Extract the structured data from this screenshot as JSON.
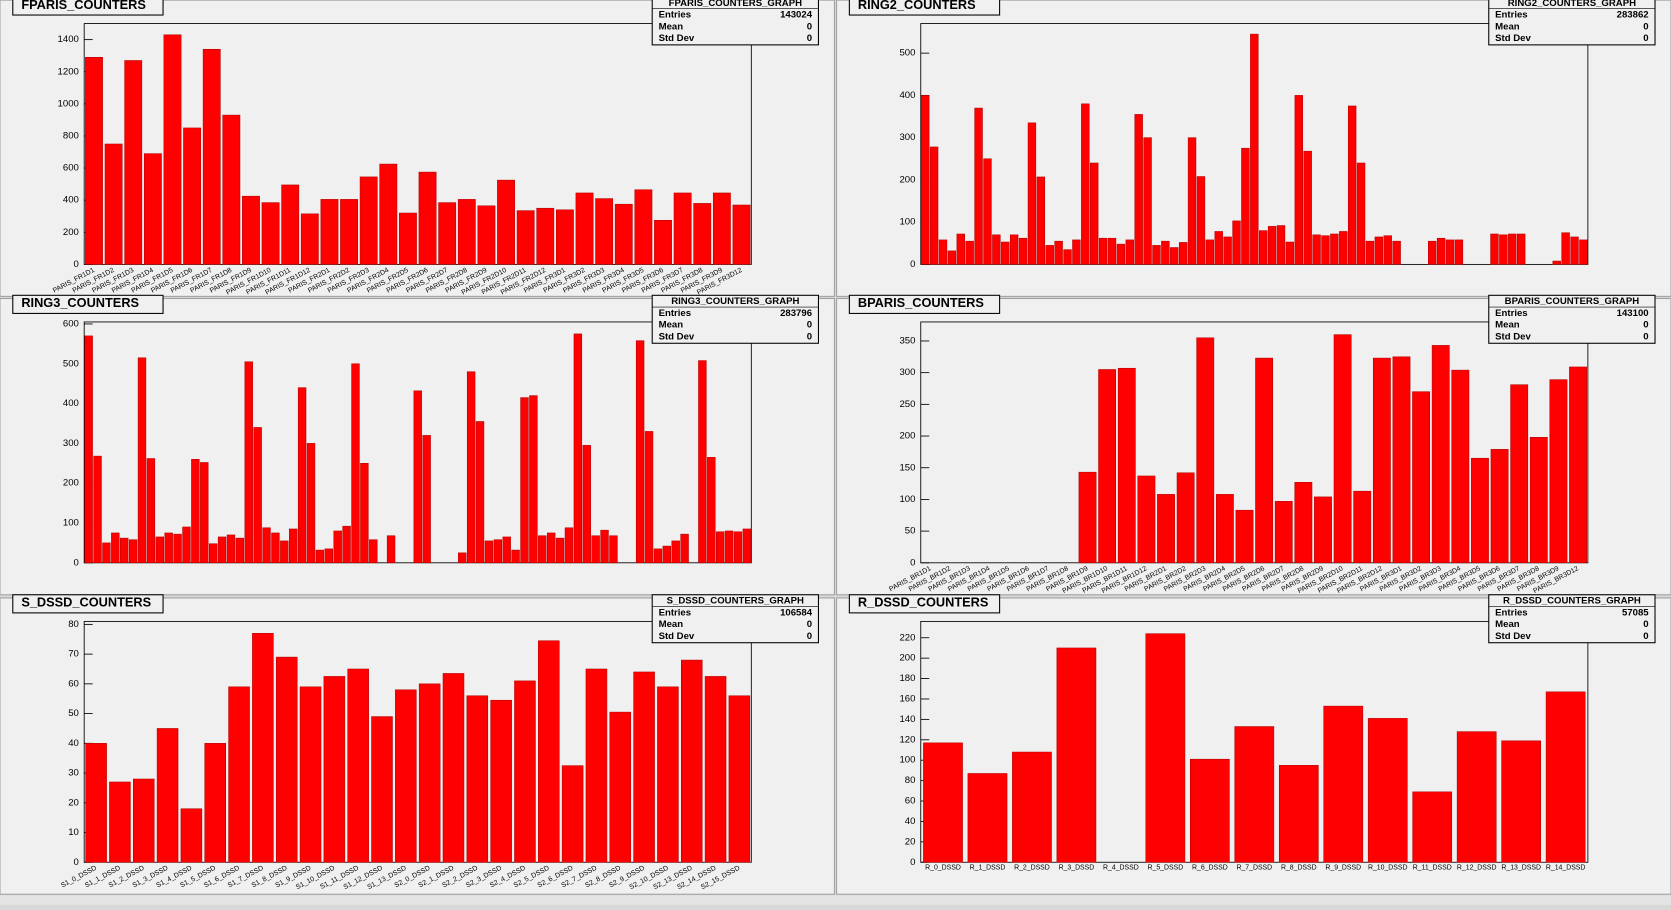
{
  "chart_data": [
    {
      "type": "bar",
      "title": "FPARIS_COUNTERS",
      "color": "#ff0000",
      "stats": {
        "name": "FPARIS_COUNTERS_GRAPH",
        "rows": [
          {
            "label": "Entries",
            "value": 143024
          },
          {
            "label": "Mean",
            "value": 0
          },
          {
            "label": "Std Dev",
            "value": 0
          }
        ]
      },
      "categories": [
        "PARIS_FR1D1",
        "PARIS_FR1D2",
        "PARIS_FR1D3",
        "PARIS_FR1D4",
        "PARIS_FR1D5",
        "PARIS_FR1D6",
        "PARIS_FR1D7",
        "PARIS_FR1D8",
        "PARIS_FR1D9",
        "PARIS_FR1D10",
        "PARIS_FR1D11",
        "PARIS_FR1D12",
        "PARIS_FR2D1",
        "PARIS_FR2D2",
        "PARIS_FR2D3",
        "PARIS_FR2D4",
        "PARIS_FR2D5",
        "PARIS_FR2D6",
        "PARIS_FR2D7",
        "PARIS_FR2D8",
        "PARIS_FR2D9",
        "PARIS_FR2D10",
        "PARIS_FR2D11",
        "PARIS_FR2D12",
        "PARIS_FR3D1",
        "PARIS_FR3D2",
        "PARIS_FR3D3",
        "PARIS_FR3D4",
        "PARIS_FR3D5",
        "PARIS_FR3D6",
        "PARIS_FR3D7",
        "PARIS_FR3D8",
        "PARIS_FR3D9",
        "PARIS_FR3D12"
      ],
      "values": [
        1290,
        750,
        1270,
        690,
        1430,
        850,
        1340,
        930,
        425,
        385,
        495,
        315,
        405,
        405,
        545,
        625,
        320,
        575,
        385,
        405,
        365,
        525,
        335,
        350,
        340,
        445,
        410,
        375,
        465,
        275,
        445,
        380,
        445,
        370
      ],
      "ylim": [
        0,
        1500
      ],
      "yticks": [
        0,
        200,
        400,
        600,
        800,
        1000,
        1200,
        1400
      ]
    },
    {
      "type": "bar",
      "title": "RING2_COUNTERS",
      "color": "#ff0000",
      "stats": {
        "name": "RING2_COUNTERS_GRAPH",
        "rows": [
          {
            "label": "Entries",
            "value": 283862
          },
          {
            "label": "Mean",
            "value": 0
          },
          {
            "label": "Std Dev",
            "value": 0
          }
        ]
      },
      "categories": [
        null,
        null,
        null,
        null,
        null,
        null,
        null,
        null,
        null,
        null,
        null,
        null,
        null,
        null,
        null,
        null,
        null,
        null,
        null,
        null,
        null,
        null,
        null,
        null,
        null,
        null,
        null,
        null,
        null,
        null,
        null,
        null,
        null,
        null,
        null,
        null,
        null,
        null,
        null,
        null,
        null,
        null,
        null,
        null,
        null,
        null,
        null,
        null,
        null,
        null,
        null,
        null,
        null,
        null,
        null,
        null,
        null,
        null,
        null,
        null,
        null,
        null,
        null,
        null,
        null,
        null,
        null,
        null,
        null,
        null,
        null,
        null,
        null,
        null,
        null
      ],
      "values": [
        400,
        278,
        58,
        32,
        72,
        55,
        370,
        250,
        70,
        53,
        70,
        62,
        335,
        207,
        45,
        55,
        35,
        58,
        380,
        240,
        62,
        62,
        48,
        58,
        355,
        300,
        45,
        55,
        40,
        52,
        300,
        208,
        58,
        78,
        65,
        103,
        275,
        545,
        80,
        90,
        92,
        53,
        400,
        268,
        70,
        68,
        72,
        78,
        375,
        240,
        55,
        65,
        68,
        55,
        0,
        0,
        0,
        55,
        62,
        58,
        58,
        0,
        0,
        0,
        72,
        70,
        72,
        72,
        0,
        0,
        0,
        8,
        75,
        65,
        58
      ],
      "ylim": [
        0,
        570
      ],
      "yticks": [
        0,
        100,
        200,
        300,
        400,
        500
      ]
    },
    {
      "type": "bar",
      "title": "RING3_COUNTERS",
      "color": "#ff0000",
      "stats": {
        "name": "RING3_COUNTERS_GRAPH",
        "rows": [
          {
            "label": "Entries",
            "value": 283796
          },
          {
            "label": "Mean",
            "value": 0
          },
          {
            "label": "Std Dev",
            "value": 0
          }
        ]
      },
      "categories": [
        null,
        null,
        null,
        null,
        null,
        null,
        null,
        null,
        null,
        null,
        null,
        null,
        null,
        null,
        null,
        null,
        null,
        null,
        null,
        null,
        null,
        null,
        null,
        null,
        null,
        null,
        null,
        null,
        null,
        null,
        null,
        null,
        null,
        null,
        null,
        null,
        null,
        null,
        null,
        null,
        null,
        null,
        null,
        null,
        null,
        null,
        null,
        null,
        null,
        null,
        null,
        null,
        null,
        null,
        null,
        null,
        null,
        null,
        null,
        null,
        null,
        null,
        null,
        null,
        null,
        null,
        null,
        null,
        null,
        null,
        null,
        null,
        null,
        null,
        null
      ],
      "values": [
        570,
        268,
        50,
        75,
        62,
        58,
        515,
        262,
        65,
        75,
        72,
        90,
        260,
        252,
        48,
        65,
        70,
        62,
        505,
        340,
        88,
        75,
        55,
        85,
        440,
        300,
        32,
        35,
        80,
        92,
        500,
        250,
        58,
        0,
        68,
        0,
        0,
        432,
        320,
        0,
        0,
        0,
        25,
        480,
        355,
        55,
        58,
        65,
        32,
        415,
        420,
        68,
        75,
        62,
        88,
        575,
        295,
        68,
        82,
        68,
        0,
        0,
        558,
        330,
        35,
        42,
        55,
        72,
        0,
        508,
        265,
        78,
        80,
        78,
        85
      ],
      "ylim": [
        0,
        605
      ],
      "yticks": [
        0,
        100,
        200,
        300,
        400,
        500,
        600
      ]
    },
    {
      "type": "bar",
      "title": "BPARIS_COUNTERS",
      "color": "#ff0000",
      "stats": {
        "name": "BPARIS_COUNTERS_GRAPH",
        "rows": [
          {
            "label": "Entries",
            "value": 143100
          },
          {
            "label": "Mean",
            "value": 0
          },
          {
            "label": "Std Dev",
            "value": 0
          }
        ]
      },
      "categories": [
        "PARIS_BR1D1",
        "PARIS_BR1D2",
        "PARIS_BR1D3",
        "PARIS_BR1D4",
        "PARIS_BR1D5",
        "PARIS_BR1D6",
        "PARIS_BR1D7",
        "PARIS_BR1D8",
        "PARIS_BR1D9",
        "PARIS_BR1D10",
        "PARIS_BR1D11",
        "PARIS_BR1D12",
        "PARIS_BR2D1",
        "PARIS_BR2D2",
        "PARIS_BR2D3",
        "PARIS_BR2D4",
        "PARIS_BR2D5",
        "PARIS_BR2D6",
        "PARIS_BR2D7",
        "PARIS_BR2D8",
        "PARIS_BR2D9",
        "PARIS_BR2D10",
        "PARIS_BR2D11",
        "PARIS_BR2D12",
        "PARIS_BR3D1",
        "PARIS_BR3D2",
        "PARIS_BR3D3",
        "PARIS_BR3D4",
        "PARIS_BR3D5",
        "PARIS_BR3D6",
        "PARIS_BR3D7",
        "PARIS_BR3D8",
        "PARIS_BR3D9",
        "PARIS_BR3D12"
      ],
      "values": [
        0,
        0,
        0,
        0,
        0,
        0,
        0,
        0,
        143,
        305,
        307,
        137,
        108,
        142,
        355,
        108,
        83,
        323,
        97,
        127,
        104,
        360,
        113,
        323,
        325,
        270,
        343,
        304,
        165,
        179,
        281,
        198,
        289,
        309
      ],
      "ylim": [
        0,
        380
      ],
      "yticks": [
        0,
        50,
        100,
        150,
        200,
        250,
        300,
        350
      ]
    },
    {
      "type": "bar",
      "title": "S_DSSD_COUNTERS",
      "color": "#ff0000",
      "stats": {
        "name": "S_DSSD_COUNTERS_GRAPH",
        "rows": [
          {
            "label": "Entries",
            "value": 106584
          },
          {
            "label": "Mean",
            "value": 0
          },
          {
            "label": "Std Dev",
            "value": 0
          }
        ]
      },
      "categories": [
        "S1_0_DSSD",
        "S1_1_DSSD",
        "S1_2_DSSD",
        "S1_3_DSSD",
        "S1_4_DSSD",
        "S1_5_DSSD",
        "S1_6_DSSD",
        "S1_7_DSSD",
        "S1_8_DSSD",
        "S1_9_DSSD",
        "S1_10_DSSD",
        "S1_11_DSSD",
        "S1_12_DSSD",
        "S1_13_DSSD",
        "S2_0_DSSD",
        "S2_1_DSSD",
        "S2_2_DSSD",
        "S2_3_DSSD",
        "S2_4_DSSD",
        "S2_5_DSSD",
        "S2_6_DSSD",
        "S2_7_DSSD",
        "S2_8_DSSD",
        "S2_9_DSSD",
        "S2_10_DSSD",
        "S2_13_DSSD",
        "S2_14_DSSD",
        "S2_15_DSSD"
      ],
      "values": [
        40,
        27,
        28,
        45,
        18,
        40,
        59,
        77,
        69,
        59,
        62.5,
        65,
        49,
        58,
        60,
        63.5,
        56,
        54.5,
        61,
        74.5,
        32.5,
        65,
        50.5,
        64,
        59,
        68,
        62.5,
        56
      ],
      "ylim": [
        0,
        81
      ],
      "yticks": [
        0,
        10,
        20,
        30,
        40,
        50,
        60,
        70,
        80
      ]
    },
    {
      "type": "bar",
      "title": "R_DSSD_COUNTERS",
      "color": "#ff0000",
      "stats": {
        "name": "R_DSSD_COUNTERS_GRAPH",
        "rows": [
          {
            "label": "Entries",
            "value": 57085
          },
          {
            "label": "Mean",
            "value": 0
          },
          {
            "label": "Std Dev",
            "value": 0
          }
        ]
      },
      "categories": [
        "R_0_DSSD",
        "R_1_DSSD",
        "R_2_DSSD",
        "R_3_DSSD",
        "R_4_DSSD",
        "R_5_DSSD",
        "R_6_DSSD",
        "R_7_DSSD",
        "R_8_DSSD",
        "R_9_DSSD",
        "R_10_DSSD",
        "R_11_DSSD",
        "R_12_DSSD",
        "R_13_DSSD",
        "R_14_DSSD"
      ],
      "values": [
        117,
        87,
        108,
        210,
        0,
        224,
        101,
        133,
        95,
        153,
        141,
        69,
        128,
        119,
        167
      ],
      "ylim": [
        0,
        236
      ],
      "yticks": [
        0,
        20,
        40,
        60,
        80,
        100,
        120,
        140,
        160,
        180,
        200,
        220
      ]
    }
  ]
}
